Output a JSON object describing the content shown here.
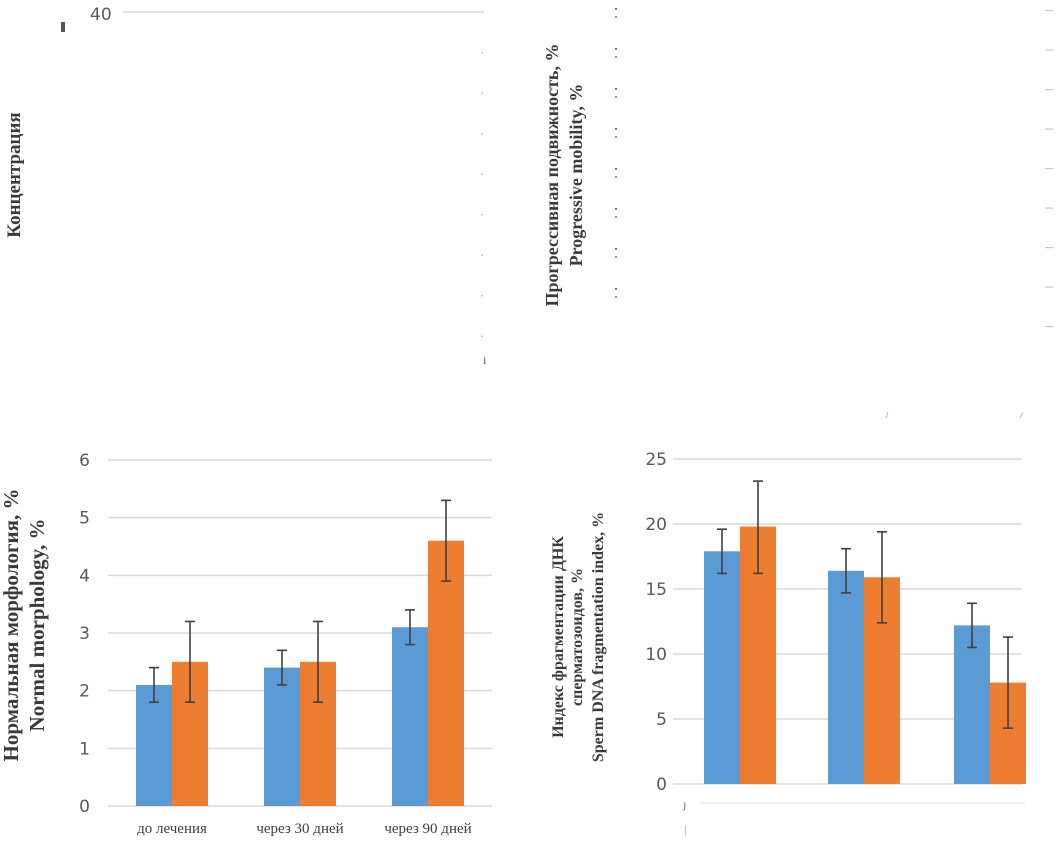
{
  "colors": {
    "series_before": "#5b9bd5",
    "series_after": "#ed7d31",
    "grid": "#d9d9d9",
    "error_bar": "#404040"
  },
  "chart_data": [
    {
      "id": "concentration",
      "type": "bar",
      "panel": "top-left",
      "partially_visible": true,
      "ylabel": "Концентрация",
      "ytick_visible": [
        "40"
      ],
      "categories": [],
      "series": []
    },
    {
      "id": "progressive-mobility",
      "type": "bar",
      "panel": "top-right",
      "partially_visible": true,
      "ylabel": [
        "Прогрессивная подвижность, %",
        "Progressive mobility, %"
      ],
      "categories": [],
      "series": []
    },
    {
      "id": "normal-morphology",
      "type": "bar",
      "panel": "bottom-left",
      "ylabel": [
        "Нормальная морфология, %",
        "Normal morphology, %"
      ],
      "xlabel": "",
      "ylim": [
        0,
        6
      ],
      "yticks": [
        "0",
        "1",
        "2",
        "3",
        "4",
        "5",
        "6"
      ],
      "grid": true,
      "categories": [
        "до лечения",
        "через 30 дней",
        "через 90  дней"
      ],
      "series": [
        {
          "name": "series-1",
          "color": "#5b9bd5",
          "values": [
            2.1,
            2.4,
            3.1
          ],
          "err_low": [
            1.8,
            2.1,
            2.8
          ],
          "err_high": [
            2.4,
            2.7,
            3.4
          ]
        },
        {
          "name": "series-2",
          "color": "#ed7d31",
          "values": [
            2.5,
            2.5,
            4.6
          ],
          "err_low": [
            1.8,
            1.8,
            3.9
          ],
          "err_high": [
            3.2,
            3.2,
            5.3
          ]
        }
      ]
    },
    {
      "id": "dna-fragmentation",
      "type": "bar",
      "panel": "bottom-right",
      "ylabel": [
        "Индекс фрагментации ДНК",
        "сперматозоидов, %",
        "Sperm DNA fragmentation index,  %"
      ],
      "xlabel": "",
      "ylim": [
        0,
        25
      ],
      "yticks": [
        "0",
        "5",
        "10",
        "15",
        "20",
        "25"
      ],
      "grid": true,
      "categories": [
        "",
        "",
        ""
      ],
      "series": [
        {
          "name": "series-1",
          "color": "#5b9bd5",
          "values": [
            17.9,
            16.4,
            12.2
          ],
          "err_low": [
            16.2,
            14.7,
            10.5
          ],
          "err_high": [
            19.6,
            18.1,
            13.9
          ]
        },
        {
          "name": "series-2",
          "color": "#ed7d31",
          "values": [
            19.8,
            15.9,
            7.8
          ],
          "err_low": [
            16.2,
            12.4,
            4.3
          ],
          "err_high": [
            23.3,
            19.4,
            11.3
          ]
        }
      ]
    }
  ]
}
